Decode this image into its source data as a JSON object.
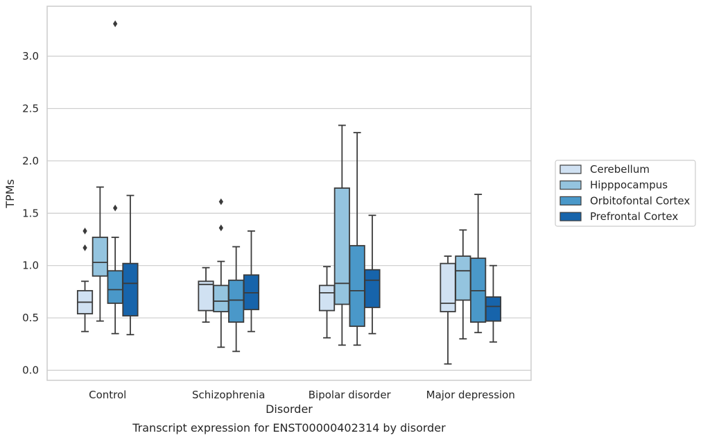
{
  "chart_data": {
    "type": "box",
    "xlabel": "Disorder",
    "ylabel": "TPMs",
    "caption": "Transcript expression for ENST00000402314 by disorder",
    "ylim": [
      -0.1,
      3.5
    ],
    "yticks": [
      0.0,
      0.5,
      1.0,
      1.5,
      2.0,
      2.5,
      3.0
    ],
    "ytick_labels": [
      "0.0",
      "0.5",
      "1.0",
      "1.5",
      "2.0",
      "2.5",
      "3.0"
    ],
    "grid": "horizontal",
    "legend_position": "right",
    "categories": [
      "Control",
      "Schizophrenia",
      "Bipolar disorder",
      "Major depression"
    ],
    "series": [
      {
        "name": "Cerebellum",
        "color": "#d0e1f2",
        "boxes": [
          {
            "whislo": 0.37,
            "q1": 0.54,
            "med": 0.65,
            "q3": 0.76,
            "whishi": 0.85,
            "fliers": [
              1.17,
              1.33
            ]
          },
          {
            "whislo": 0.46,
            "q1": 0.57,
            "med": 0.82,
            "q3": 0.85,
            "whishi": 0.98,
            "fliers": []
          },
          {
            "whislo": 0.31,
            "q1": 0.57,
            "med": 0.74,
            "q3": 0.81,
            "whishi": 0.99,
            "fliers": []
          },
          {
            "whislo": 0.06,
            "q1": 0.56,
            "med": 0.64,
            "q3": 1.02,
            "whishi": 1.09,
            "fliers": []
          }
        ]
      },
      {
        "name": "Hipppocampus",
        "color": "#94c4df",
        "boxes": [
          {
            "whislo": 0.47,
            "q1": 0.9,
            "med": 1.03,
            "q3": 1.27,
            "whishi": 1.75,
            "fliers": []
          },
          {
            "whislo": 0.22,
            "q1": 0.56,
            "med": 0.66,
            "q3": 0.81,
            "whishi": 1.04,
            "fliers": [
              1.36,
              1.61
            ]
          },
          {
            "whislo": 0.24,
            "q1": 0.63,
            "med": 0.83,
            "q3": 1.74,
            "whishi": 2.34,
            "fliers": []
          },
          {
            "whislo": 0.3,
            "q1": 0.67,
            "med": 0.95,
            "q3": 1.09,
            "whishi": 1.34,
            "fliers": []
          }
        ]
      },
      {
        "name": "Orbitofontal Cortex",
        "color": "#4a98c9",
        "boxes": [
          {
            "whislo": 0.35,
            "q1": 0.64,
            "med": 0.77,
            "q3": 0.95,
            "whishi": 1.27,
            "fliers": [
              1.55,
              3.31
            ]
          },
          {
            "whislo": 0.18,
            "q1": 0.46,
            "med": 0.67,
            "q3": 0.86,
            "whishi": 1.18,
            "fliers": []
          },
          {
            "whislo": 0.24,
            "q1": 0.42,
            "med": 0.76,
            "q3": 1.19,
            "whishi": 2.27,
            "fliers": []
          },
          {
            "whislo": 0.36,
            "q1": 0.46,
            "med": 0.76,
            "q3": 1.07,
            "whishi": 1.68,
            "fliers": []
          }
        ]
      },
      {
        "name": "Prefrontal Cortex",
        "color": "#1764ab",
        "boxes": [
          {
            "whislo": 0.34,
            "q1": 0.52,
            "med": 0.83,
            "q3": 1.02,
            "whishi": 1.67,
            "fliers": []
          },
          {
            "whislo": 0.37,
            "q1": 0.58,
            "med": 0.74,
            "q3": 0.91,
            "whishi": 1.33,
            "fliers": []
          },
          {
            "whislo": 0.35,
            "q1": 0.6,
            "med": 0.86,
            "q3": 0.96,
            "whishi": 1.48,
            "fliers": []
          },
          {
            "whislo": 0.27,
            "q1": 0.47,
            "med": 0.61,
            "q3": 0.7,
            "whishi": 1.0,
            "fliers": []
          }
        ]
      }
    ]
  }
}
